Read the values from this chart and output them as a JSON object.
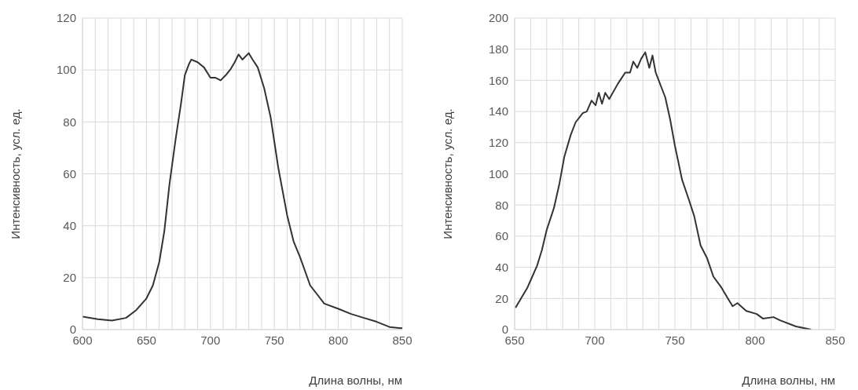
{
  "chart_data": [
    {
      "type": "line",
      "xlabel": "Длина волны, нм",
      "ylabel": "Интенсивность, усл. ед.",
      "grid": true,
      "marker": "none",
      "line_style": "solid",
      "xlim": [
        600,
        850
      ],
      "xticks": [
        600,
        {
          "value": 610,
          "label": null
        },
        {
          "value": 620,
          "label": null
        },
        {
          "value": 630,
          "label": null
        },
        {
          "value": 640,
          "label": null
        },
        650,
        {
          "value": 660,
          "label": null
        },
        {
          "value": 670,
          "label": null
        },
        {
          "value": 680,
          "label": null
        },
        {
          "value": 690,
          "label": null
        },
        700,
        {
          "value": 710,
          "label": null
        },
        {
          "value": 720,
          "label": null
        },
        {
          "value": 730,
          "label": null
        },
        {
          "value": 740,
          "label": null
        },
        750,
        {
          "value": 760,
          "label": null
        },
        {
          "value": 770,
          "label": null
        },
        {
          "value": 780,
          "label": null
        },
        {
          "value": 790,
          "label": null
        },
        800,
        {
          "value": 810,
          "label": null
        },
        {
          "value": 820,
          "label": null
        },
        {
          "value": 830,
          "label": null
        },
        {
          "value": 840,
          "label": null
        },
        850
      ],
      "ylim": [
        0,
        120
      ],
      "yticks": [
        0,
        20,
        40,
        60,
        80,
        100,
        120
      ],
      "series": [
        {
          "color": "#333333",
          "x": [
            600,
            612,
            623,
            634,
            642,
            650,
            655,
            660,
            664,
            668,
            673,
            677,
            680,
            683,
            685,
            690,
            695,
            700,
            704,
            708,
            712,
            716,
            719,
            722,
            725,
            730,
            733,
            737,
            742,
            747,
            753,
            760,
            765,
            770,
            778,
            789,
            800,
            810,
            820,
            830,
            840,
            850
          ],
          "values": [
            5,
            4,
            3.5,
            4.5,
            7.5,
            12,
            17,
            26,
            38,
            56,
            74,
            87,
            98,
            102,
            104,
            103,
            101,
            97,
            97,
            96,
            98,
            100.5,
            103,
            106,
            104,
            106.5,
            104,
            101,
            93,
            82,
            62.5,
            44,
            34,
            28,
            17,
            10,
            8,
            6,
            4.5,
            3,
            1,
            0.5
          ]
        }
      ]
    },
    {
      "type": "line",
      "xlabel": "Длина волны, нм",
      "ylabel": "Интенсивность, усл. ед.",
      "grid": true,
      "marker": "none",
      "line_style": "solid",
      "xlim": [
        650,
        850
      ],
      "xticks": [
        650,
        {
          "value": 660,
          "label": null
        },
        {
          "value": 670,
          "label": null
        },
        {
          "value": 680,
          "label": null
        },
        {
          "value": 690,
          "label": null
        },
        700,
        {
          "value": 710,
          "label": null
        },
        {
          "value": 720,
          "label": null
        },
        {
          "value": 730,
          "label": null
        },
        {
          "value": 740,
          "label": null
        },
        750,
        {
          "value": 760,
          "label": null
        },
        {
          "value": 770,
          "label": null
        },
        {
          "value": 780,
          "label": null
        },
        {
          "value": 790,
          "label": null
        },
        800,
        {
          "value": 810,
          "label": null
        },
        {
          "value": 820,
          "label": null
        },
        {
          "value": 830,
          "label": null
        },
        {
          "value": 840,
          "label": null
        },
        850
      ],
      "ylim": [
        0,
        200
      ],
      "yticks": [
        0,
        20,
        40,
        60,
        80,
        100,
        120,
        140,
        160,
        180,
        200
      ],
      "series": [
        {
          "color": "#333333",
          "x": [
            650.5,
            654,
            658,
            661,
            664,
            667,
            670,
            674.5,
            678,
            681,
            685,
            688,
            692.5,
            695,
            698,
            700.5,
            702.5,
            704.5,
            706.5,
            709,
            714.5,
            719,
            722,
            724,
            726.5,
            729,
            731.5,
            734,
            736,
            738,
            744,
            747,
            750,
            754.5,
            758.5,
            762,
            766,
            770,
            774,
            779,
            783,
            786,
            789,
            794.5,
            801,
            805,
            811.5,
            815.5,
            825.5,
            835
          ],
          "values": [
            14,
            20,
            27,
            34,
            41,
            51,
            64,
            78,
            94,
            111,
            125,
            133,
            139,
            140,
            147,
            144,
            152,
            145,
            152,
            148,
            158,
            165,
            165,
            172,
            168,
            174,
            178,
            168,
            176,
            165,
            149,
            135,
            118,
            96,
            84,
            73,
            54,
            46,
            34,
            27,
            20,
            15,
            17,
            12,
            10,
            7,
            8,
            6,
            2,
            0
          ]
        }
      ]
    }
  ]
}
